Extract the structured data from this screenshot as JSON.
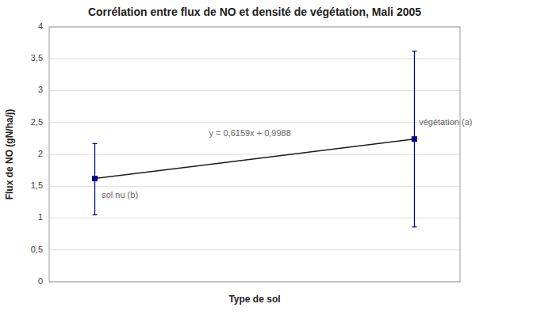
{
  "chart_data": {
    "type": "scatter",
    "title": "Corrélation entre flux de NO et densité de végétation, Mali 2005",
    "x_label": "Type de sol",
    "y_label": "Flux de NO (gN/ha/j)",
    "x": [
      1,
      8
    ],
    "xlim": [
      0,
      9
    ],
    "xticks": [],
    "ylim": [
      0,
      4
    ],
    "yticks": [
      0,
      {
        "value": 0.5,
        "label": "0,5"
      },
      1,
      {
        "value": 1.5,
        "label": "1,5"
      },
      2,
      {
        "value": 2.5,
        "label": "2,5"
      },
      3,
      {
        "value": 3.5,
        "label": "3,5"
      },
      4
    ],
    "grid": true,
    "tick_labels": "y",
    "series": [
      {
        "type": "scatter",
        "marker": "square",
        "color": "#00008B",
        "values": [
          1.62,
          2.24
        ],
        "error_lower": [
          0.57,
          1.38
        ],
        "error_upper": [
          0.55,
          1.38
        ]
      },
      {
        "type": "line",
        "color": "#1a1a1a",
        "values": [
          1.62,
          2.24
        ]
      }
    ],
    "annotations": [
      {
        "text": "sol nu (b)",
        "x": 1.15,
        "y": 1.35
      },
      {
        "text": "végétation (a)",
        "x": 8.1,
        "y": 2.5
      },
      {
        "text": "y = 0,6159x + 0,9988",
        "x": 3.5,
        "y": 2.32
      }
    ]
  }
}
